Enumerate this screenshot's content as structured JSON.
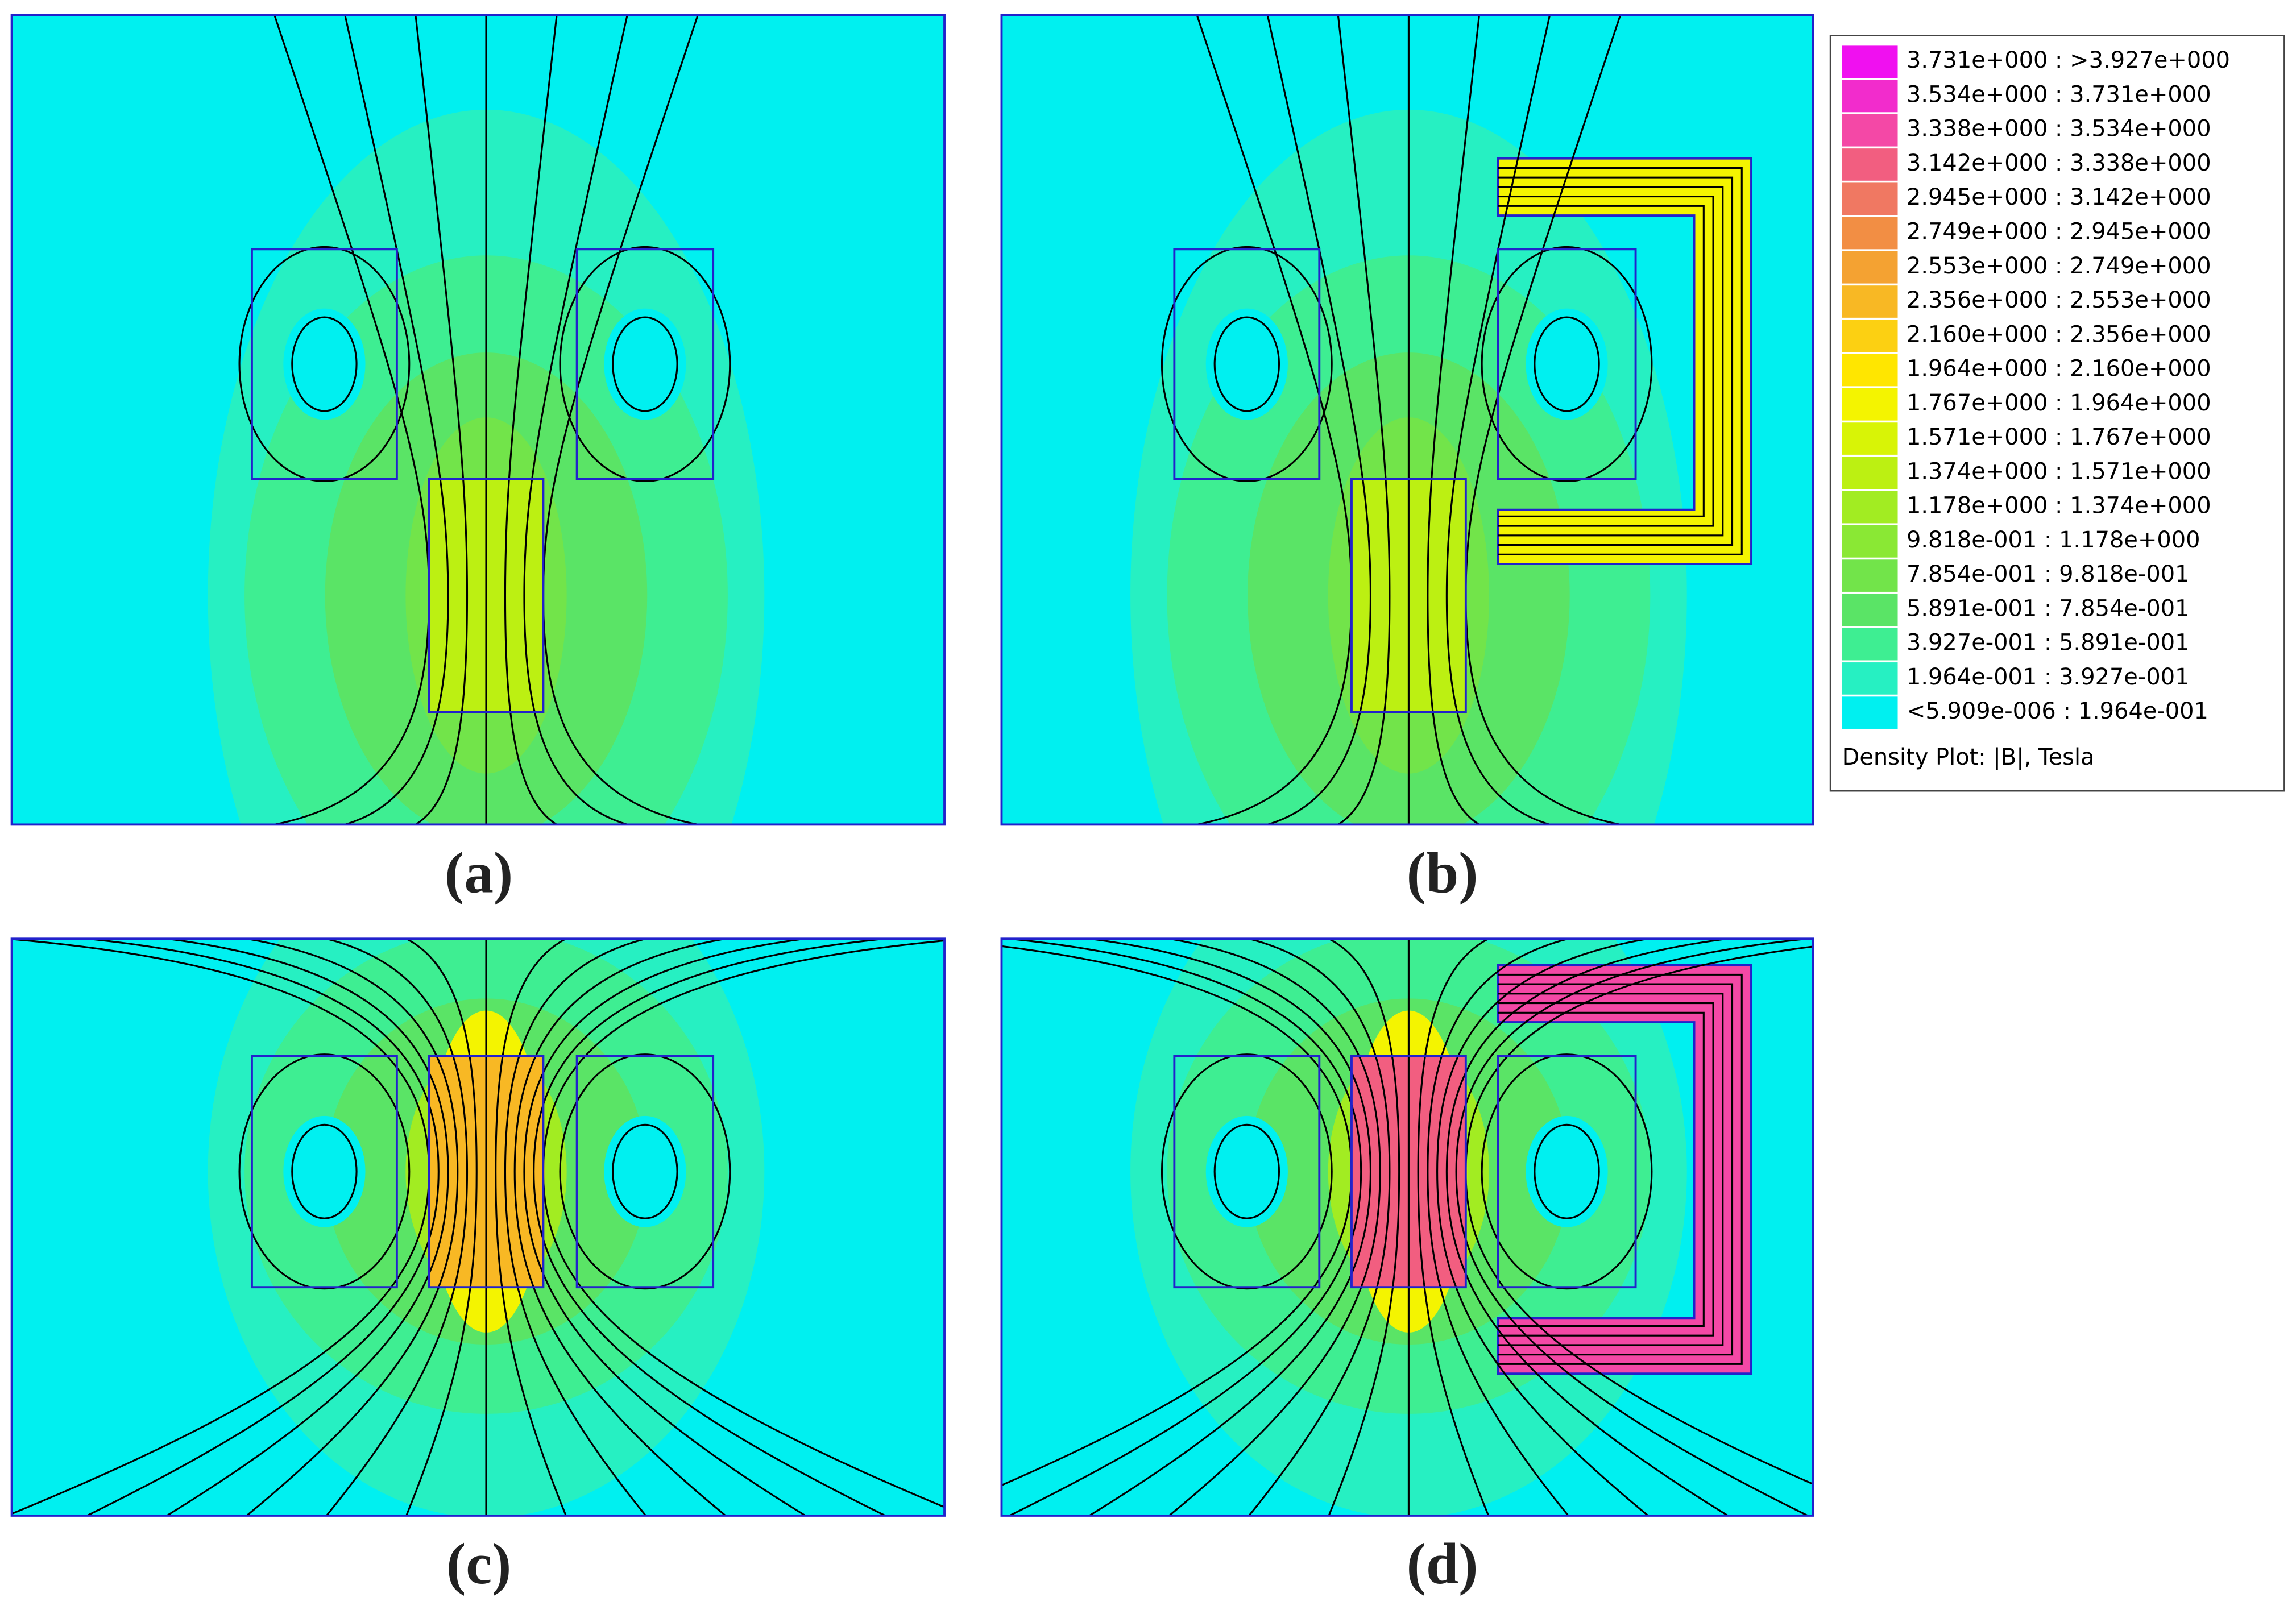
{
  "panels": [
    {
      "label": "(a)"
    },
    {
      "label": "(b)"
    },
    {
      "label": "(c)"
    },
    {
      "label": "(d)"
    }
  ],
  "legend": {
    "title": "Density Plot: |B|, Tesla",
    "entries": [
      {
        "label": "3.731e+000 : >3.927e+000",
        "color": "#f010f0"
      },
      {
        "label": "3.534e+000 : 3.731e+000",
        "color": "#f22ccc"
      },
      {
        "label": "3.338e+000 : 3.534e+000",
        "color": "#f448a6"
      },
      {
        "label": "3.142e+000 : 3.338e+000",
        "color": "#f25e80"
      },
      {
        "label": "2.945e+000 : 3.142e+000",
        "color": "#f07862"
      },
      {
        "label": "2.749e+000 : 2.945e+000",
        "color": "#f28e44"
      },
      {
        "label": "2.553e+000 : 2.749e+000",
        "color": "#f4a232"
      },
      {
        "label": "2.356e+000 : 2.553e+000",
        "color": "#f8b824"
      },
      {
        "label": "2.160e+000 : 2.356e+000",
        "color": "#fcd012"
      },
      {
        "label": "1.964e+000 : 2.160e+000",
        "color": "#ffe600"
      },
      {
        "label": "1.767e+000 : 1.964e+000",
        "color": "#f4f400"
      },
      {
        "label": "1.571e+000 : 1.767e+000",
        "color": "#d8f406"
      },
      {
        "label": "1.374e+000 : 1.571e+000",
        "color": "#bcf012"
      },
      {
        "label": "1.178e+000 : 1.374e+000",
        "color": "#a2ec22"
      },
      {
        "label": "9.818e-001 : 1.178e+000",
        "color": "#8ae834"
      },
      {
        "label": "7.854e-001 : 9.818e-001",
        "color": "#72e44a"
      },
      {
        "label": "5.891e-001 : 7.854e-001",
        "color": "#5ae466"
      },
      {
        "label": "3.927e-001 : 5.891e-001",
        "color": "#3eee92"
      },
      {
        "label": "1.964e-001 : 3.927e-001",
        "color": "#26f0c2"
      },
      {
        "label": "<5.909e-006 : 1.964e-001",
        "color": "#00f0f0"
      }
    ]
  }
}
